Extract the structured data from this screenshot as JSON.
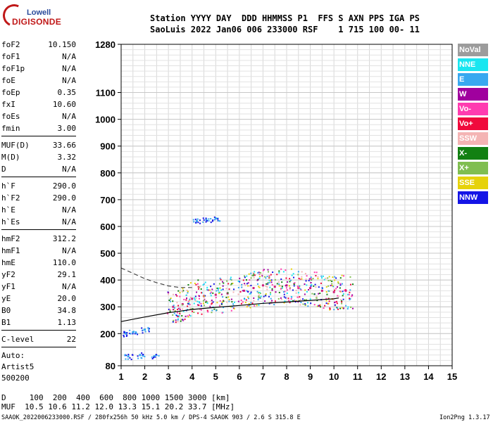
{
  "logo": {
    "line1": "Lowell",
    "line2": "DIGISONDE"
  },
  "header": {
    "line1": "Station YYYY DAY  DDD HHMMSS P1  FFS S AXN PPS IGA PS",
    "line2": "SaoLuis 2022 Jan06 006 233000 RSF    1 715 100 00- 11"
  },
  "params": {
    "group1": [
      {
        "name": "foF2",
        "value": "10.150"
      },
      {
        "name": "foF1",
        "value": "N/A"
      },
      {
        "name": "foF1p",
        "value": "N/A"
      },
      {
        "name": "foE",
        "value": "N/A"
      },
      {
        "name": "foEp",
        "value": "0.35"
      },
      {
        "name": "fxI",
        "value": "10.60"
      },
      {
        "name": "foEs",
        "value": "N/A"
      },
      {
        "name": "fmin",
        "value": "3.00"
      }
    ],
    "group2": [
      {
        "name": "MUF(D)",
        "value": "33.66"
      },
      {
        "name": "M(D)",
        "value": "3.32"
      },
      {
        "name": "D",
        "value": "N/A"
      }
    ],
    "group3": [
      {
        "name": "h`F",
        "value": "290.0"
      },
      {
        "name": "h`F2",
        "value": "290.0"
      },
      {
        "name": "h`E",
        "value": "N/A"
      },
      {
        "name": "h`Es",
        "value": "N/A"
      }
    ],
    "group4": [
      {
        "name": "hmF2",
        "value": "312.2"
      },
      {
        "name": "hmF1",
        "value": "N/A"
      },
      {
        "name": "hmE",
        "value": "110.0"
      },
      {
        "name": "yF2",
        "value": "29.1"
      },
      {
        "name": "yF1",
        "value": "N/A"
      },
      {
        "name": "yE",
        "value": "20.0"
      },
      {
        "name": "B0",
        "value": "34.8"
      },
      {
        "name": "B1",
        "value": "1.13"
      }
    ],
    "group5": [
      {
        "name": "C-level",
        "value": "22"
      }
    ]
  },
  "auto": {
    "line1": "Auto:",
    "line2": "Artist5",
    "line3": "500200"
  },
  "legend": [
    {
      "label": "NoVal",
      "color": "#9c9c9c"
    },
    {
      "label": "NNE",
      "color": "#19e6f0"
    },
    {
      "label": "E",
      "color": "#38a8f0"
    },
    {
      "label": "W",
      "color": "#a0009e"
    },
    {
      "label": "Vo-",
      "color": "#ff3cb0"
    },
    {
      "label": "Vo+",
      "color": "#f00a3c"
    },
    {
      "label": "SSW",
      "color": "#f4b4b4"
    },
    {
      "label": "X-",
      "color": "#128012"
    },
    {
      "label": "X+",
      "color": "#80be50"
    },
    {
      "label": "SSE",
      "color": "#e6d20a"
    },
    {
      "label": "NNW",
      "color": "#1414e6"
    }
  ],
  "chart_data": {
    "type": "scatter",
    "title": "",
    "xlabel": "",
    "ylabel": "",
    "xlim": [
      1,
      15
    ],
    "ylim": [
      80,
      1280
    ],
    "x_ticks": [
      1,
      2,
      3,
      4,
      5,
      6,
      7,
      8,
      9,
      10,
      11,
      12,
      13,
      14,
      15
    ],
    "y_ticks": [
      80,
      200,
      300,
      400,
      500,
      600,
      700,
      800,
      900,
      1000,
      1100,
      1280
    ],
    "grid": true,
    "scale_note": "frequency in MHz, virtual height in km",
    "series": [
      {
        "color": "#d01f7a",
        "points": [
          [
            3.2,
            300
          ],
          [
            3.6,
            310
          ],
          [
            4.0,
            330
          ],
          [
            4.5,
            340
          ],
          [
            5.0,
            345
          ],
          [
            5.5,
            350
          ],
          [
            6.2,
            360
          ],
          [
            6.6,
            370
          ],
          [
            7.0,
            380
          ],
          [
            7.5,
            375
          ],
          [
            8.0,
            380
          ],
          [
            8.5,
            370
          ],
          [
            9.0,
            370
          ],
          [
            9.5,
            360
          ],
          [
            10.0,
            355
          ],
          [
            10.5,
            360
          ]
        ]
      },
      {
        "color": "#38a8f0",
        "points": [
          [
            1.2,
            200
          ],
          [
            1.5,
            205
          ],
          [
            2.0,
            215
          ],
          [
            1.3,
            115
          ],
          [
            1.8,
            120
          ],
          [
            2.4,
            115
          ],
          [
            4.2,
            620
          ],
          [
            4.6,
            625
          ],
          [
            5.0,
            630
          ]
        ]
      }
    ],
    "curves": [
      {
        "name": "solid",
        "points": [
          [
            1.0,
            245
          ],
          [
            2.0,
            262
          ],
          [
            3.0,
            278
          ],
          [
            4.0,
            290
          ],
          [
            5.0,
            298
          ],
          [
            6.0,
            305
          ],
          [
            7.0,
            313
          ],
          [
            8.0,
            318
          ],
          [
            9.0,
            324
          ],
          [
            10.0,
            330
          ],
          [
            10.2,
            333
          ]
        ]
      },
      {
        "name": "dashed",
        "points": [
          [
            1.0,
            445
          ],
          [
            1.5,
            425
          ],
          [
            2.0,
            405
          ],
          [
            2.5,
            390
          ],
          [
            3.0,
            378
          ],
          [
            3.5,
            372
          ],
          [
            4.0,
            372
          ]
        ]
      }
    ]
  },
  "bottom": {
    "line1": "D     100  200  400  600  800 1000 1500 3000 [km]",
    "line2": "MUF  10.5 10.6 11.2 12.0 13.3 15.1 20.2 33.7 [MHz]"
  },
  "footer": {
    "left": "SAAOK_2022006233000.RSF / 280fx256h 50 kHz 5.0 km / DPS-4 SAAOK 903 / 2.6 S 315.8 E",
    "right": "Ion2Png 1.3.17"
  }
}
